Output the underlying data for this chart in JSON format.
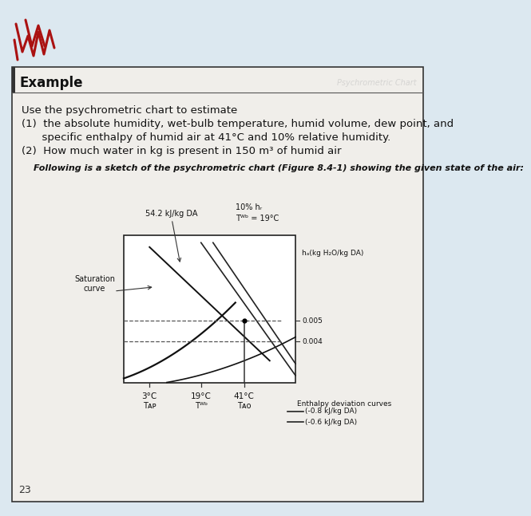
{
  "title": "Example",
  "question_lines": [
    "Use the psychrometric chart to estimate",
    "(1)  the absolute humidity, wet-bulb temperature, humid volume, dew point, and",
    "      specific enthalpy of humid air at 41°C and 10% relative humidity.",
    "(2)  How much water in kg is present in 150 m³ of humid air"
  ],
  "caption": "Following is a sketch of the psychrometric chart (Figure 8.4-1) showing the given state of the air:",
  "page_number": "23",
  "chart": {
    "enthalpy_label": "54.2 kJ/kg DA",
    "rh_label": "10% hᵣ",
    "twb_label": "Tᵂᵇ = 19°C",
    "saturation_label": "Saturation\ncurve",
    "ha_label": "hₐ(kg H₂O/kg DA)",
    "val_0005": "0.005",
    "val_0004": "0.004",
    "x_labels": [
      "3°C",
      "19°C",
      "41°C"
    ],
    "x_sublabels": [
      "Tᴀᴘ",
      "Tᵂᵇ",
      "Tᴀᴏ"
    ],
    "enthalpy_deviation_title": "Enthalpy deviation curves",
    "enthalpy_dev1": "—(-0.8 kJ/kg DA)",
    "enthalpy_dev2": "—(-0.6 kJ/kg DA)"
  },
  "bg_color": "#dce8f0",
  "text_color": "#111111",
  "chart_bg": "#ffffff"
}
